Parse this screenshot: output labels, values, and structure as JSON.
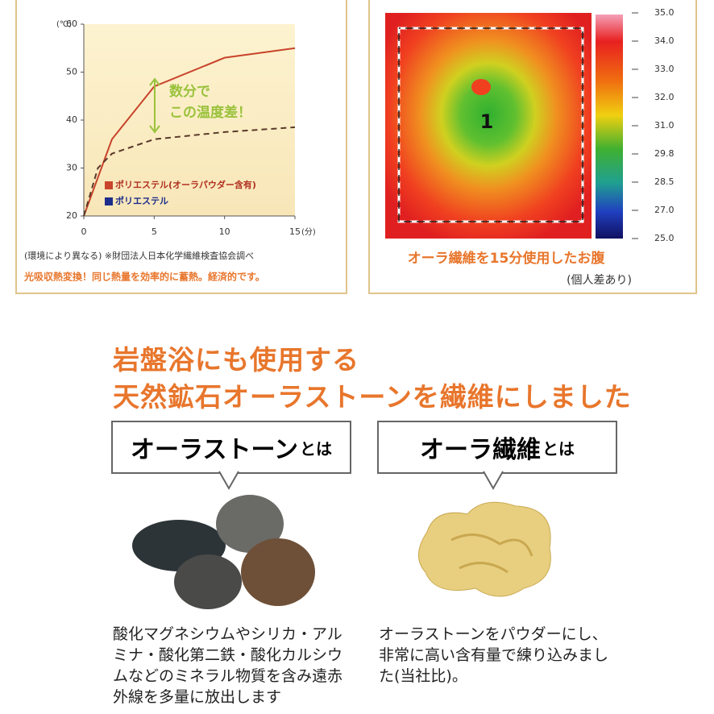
{
  "chart_data": {
    "type": "line",
    "y_unit": "(℃)",
    "x_unit": "(分)",
    "xlim": [
      0,
      15
    ],
    "ylim": [
      20,
      60
    ],
    "xticks": [
      0,
      5,
      10,
      15
    ],
    "yticks": [
      20,
      30,
      40,
      50,
      60
    ],
    "x": [
      0,
      1,
      2,
      5,
      10,
      15
    ],
    "series": [
      {
        "name": "ポリエステル(オーラパウダー含有)",
        "color": "#c8442c",
        "values": [
          20,
          28,
          36,
          47,
          53,
          55
        ]
      },
      {
        "name": "ポリエステル",
        "color": "#1c2d8c",
        "line_color": "#5a3a2a",
        "dashed": true,
        "values": [
          20,
          30,
          33,
          36,
          37.5,
          38.5
        ]
      }
    ],
    "annotation": [
      "数分で",
      "この温度差！"
    ],
    "notes": [
      "(環境により異なる) ※財団法人日本化学繊維検査協会調べ",
      "光吸収熱変換！同じ熱量を効率的に蓄熱。経済的です。"
    ]
  },
  "thermal": {
    "region_label": "1",
    "scale": [
      "35.0",
      "34.0",
      "33.0",
      "32.0",
      "31.0",
      "29.8",
      "28.5",
      "27.0",
      "25.0"
    ],
    "caption": "オーラ繊維を15分使用したお腹",
    "note": "(個人差あり)"
  },
  "headline": [
    "岩盤浴にも使用する",
    "天然鉱石オーラストーンを繊維にしました"
  ],
  "cards": [
    {
      "title": "オーラストーン",
      "suffix": "とは",
      "text": "酸化マグネシウムやシリカ・アルミナ・酸化第二鉄・酸化カルシウムなどのミネラル物質を含み遠赤外線を多量に放出します"
    },
    {
      "title": "オーラ繊維",
      "suffix": "とは",
      "text": "オーラストーンをパウダーにし、非常に高い含有量で練り込みました(当社比)。"
    }
  ]
}
